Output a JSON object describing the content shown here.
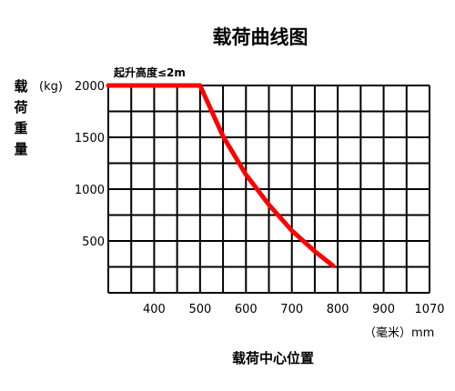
{
  "chart_data": {
    "type": "line",
    "title": "载荷曲线图",
    "ylabel": "载荷重量",
    "yunit": "(kg)",
    "xlabel": "载荷中心位置",
    "xunit": "（毫米）mm",
    "annotation": "起升高度≤2m",
    "x_ticks": [
      "400",
      "500",
      "600",
      "700",
      "800",
      "900",
      "1070"
    ],
    "y_ticks": [
      "500",
      "1000",
      "1500",
      "2000"
    ],
    "xlim": [
      300,
      1000
    ],
    "ylim": [
      0,
      2000
    ],
    "grid": true,
    "series": [
      {
        "color": "#ff0000",
        "x": [
          300,
          400,
          500,
          550,
          600,
          650,
          700,
          750,
          790
        ],
        "y": [
          2000,
          2000,
          2000,
          1510,
          1140,
          850,
          600,
          400,
          260
        ]
      }
    ]
  }
}
